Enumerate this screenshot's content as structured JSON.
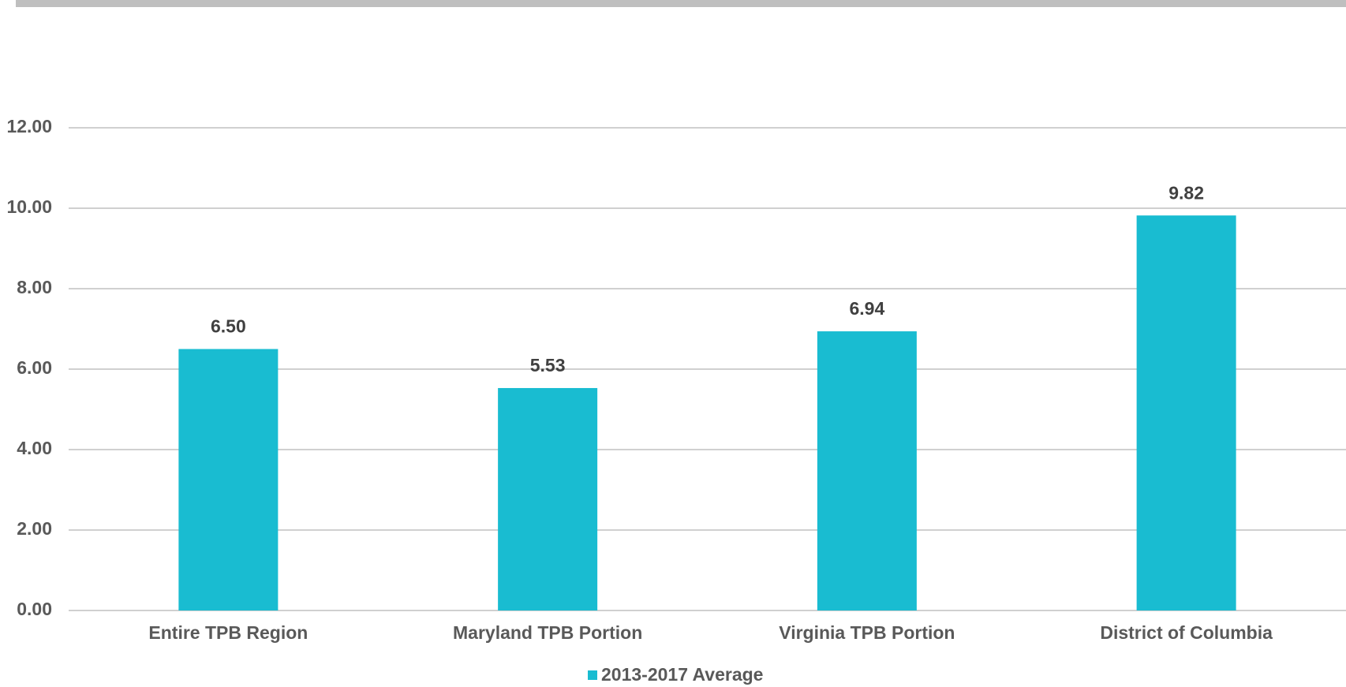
{
  "chart_data": {
    "type": "bar",
    "categories": [
      "Entire TPB Region",
      "Maryland TPB Portion",
      "Virginia TPB Portion",
      "District of Columbia"
    ],
    "series": [
      {
        "name": "2013-2017 Average",
        "color": "#19bcd1",
        "values": [
          6.5,
          5.53,
          6.94,
          9.82
        ],
        "value_labels": [
          "6.50",
          "5.53",
          "6.94",
          "9.82"
        ]
      }
    ],
    "ylim": [
      0,
      12
    ],
    "yticks": [
      {
        "value": 0,
        "label": "0.00"
      },
      {
        "value": 2,
        "label": "2.00"
      },
      {
        "value": 4,
        "label": "4.00"
      },
      {
        "value": 6,
        "label": "6.00"
      },
      {
        "value": 8,
        "label": "8.00"
      },
      {
        "value": 10,
        "label": "10.00"
      },
      {
        "value": 12,
        "label": "12.00"
      }
    ],
    "grid": true,
    "legend": "bottom"
  }
}
